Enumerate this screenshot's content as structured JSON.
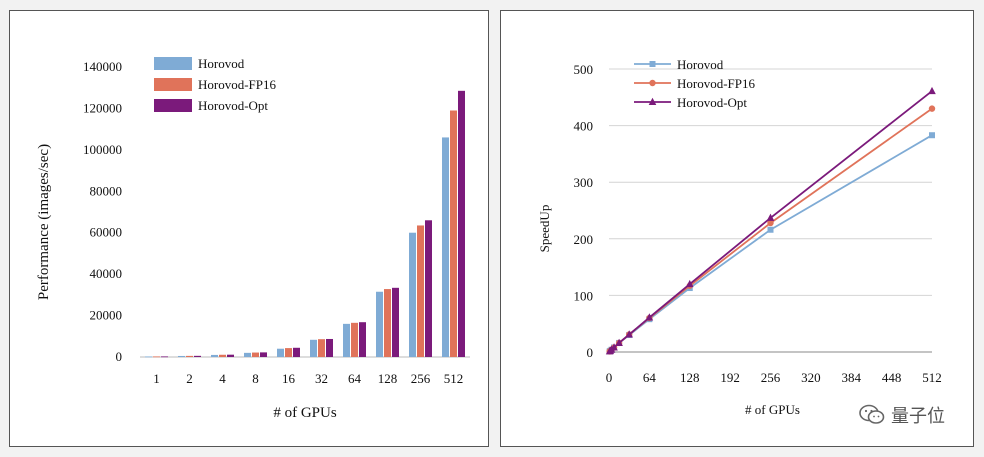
{
  "chart_data": [
    {
      "type": "bar",
      "xlabel": "# of GPUs",
      "ylabel": "Performance (images/sec)",
      "categories": [
        "1",
        "2",
        "4",
        "8",
        "16",
        "32",
        "64",
        "128",
        "256",
        "512"
      ],
      "ylim": [
        0,
        140000
      ],
      "yticks": [
        0,
        20000,
        40000,
        60000,
        80000,
        100000,
        120000,
        140000
      ],
      "legend_position": "top-left",
      "series": [
        {
          "name": "Horovod",
          "color": "#7fabd5",
          "values": [
            250,
            500,
            1000,
            2000,
            4000,
            8300,
            16000,
            31500,
            60000,
            106000
          ]
        },
        {
          "name": "Horovod-FP16",
          "color": "#e0735a",
          "values": [
            270,
            540,
            1080,
            2150,
            4300,
            8600,
            16500,
            32800,
            63500,
            119000
          ]
        },
        {
          "name": "Horovod-Opt",
          "color": "#7b1a7b",
          "values": [
            280,
            560,
            1120,
            2230,
            4450,
            8700,
            16800,
            33400,
            66000,
            128500
          ]
        }
      ]
    },
    {
      "type": "line",
      "xlabel": "# of GPUs",
      "ylabel": "SpeedUp",
      "xlim": [
        0,
        512
      ],
      "ylim": [
        0,
        500
      ],
      "xticks": [
        0,
        64,
        128,
        192,
        256,
        320,
        384,
        448,
        512
      ],
      "yticks": [
        0,
        100,
        200,
        300,
        400,
        500
      ],
      "legend_position": "top-left",
      "series": [
        {
          "name": "Horovod",
          "color": "#7fabd5",
          "marker": "square",
          "x": [
            1,
            2,
            4,
            8,
            16,
            32,
            64,
            128,
            256,
            512
          ],
          "y": [
            1,
            2,
            4,
            8,
            16,
            30,
            58,
            113,
            216,
            383
          ]
        },
        {
          "name": "Horovod-FP16",
          "color": "#e0735a",
          "marker": "circle",
          "x": [
            1,
            2,
            4,
            8,
            16,
            32,
            64,
            128,
            256,
            512
          ],
          "y": [
            1,
            2,
            4,
            8,
            16,
            31,
            60,
            117,
            228,
            430
          ]
        },
        {
          "name": "Horovod-Opt",
          "color": "#7b1a7b",
          "marker": "triangle",
          "x": [
            1,
            2,
            4,
            8,
            16,
            32,
            64,
            128,
            256,
            512
          ],
          "y": [
            1,
            2,
            4,
            8,
            16,
            31,
            61,
            120,
            237,
            461
          ]
        }
      ]
    }
  ],
  "watermark": {
    "text": "量子位",
    "icon": "wechat-icon"
  }
}
